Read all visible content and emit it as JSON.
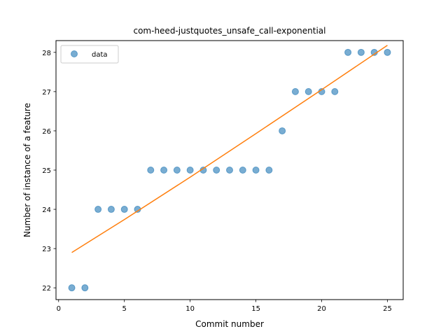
{
  "chart_data": {
    "type": "scatter",
    "title": "com-heed-justquotes_unsafe_call-exponential",
    "xlabel": "Commit number",
    "ylabel": "Number of instance of a feature",
    "xlim": [
      -0.2,
      26.2
    ],
    "ylim": [
      21.7,
      28.3
    ],
    "xticks": [
      0,
      5,
      10,
      15,
      20,
      25
    ],
    "yticks": [
      22,
      23,
      24,
      25,
      26,
      27,
      28
    ],
    "grid": false,
    "legend_position": "top-left",
    "series": [
      {
        "name": "data",
        "kind": "scatter",
        "color": "#1f77b4",
        "x": [
          1,
          2,
          3,
          4,
          5,
          6,
          7,
          8,
          9,
          10,
          11,
          12,
          13,
          14,
          15,
          16,
          17,
          18,
          19,
          20,
          21,
          22,
          23,
          24,
          25
        ],
        "y": [
          22,
          22,
          24,
          24,
          24,
          24,
          25,
          25,
          25,
          25,
          25,
          25,
          25,
          25,
          25,
          25,
          26,
          27,
          27,
          27,
          27,
          28,
          28,
          28,
          28
        ]
      },
      {
        "kind": "line",
        "color": "#ff7f0e",
        "x": [
          1,
          5,
          10,
          15,
          20,
          25
        ],
        "y": [
          22.9,
          23.74,
          24.82,
          25.93,
          27.05,
          28.18
        ]
      }
    ]
  }
}
